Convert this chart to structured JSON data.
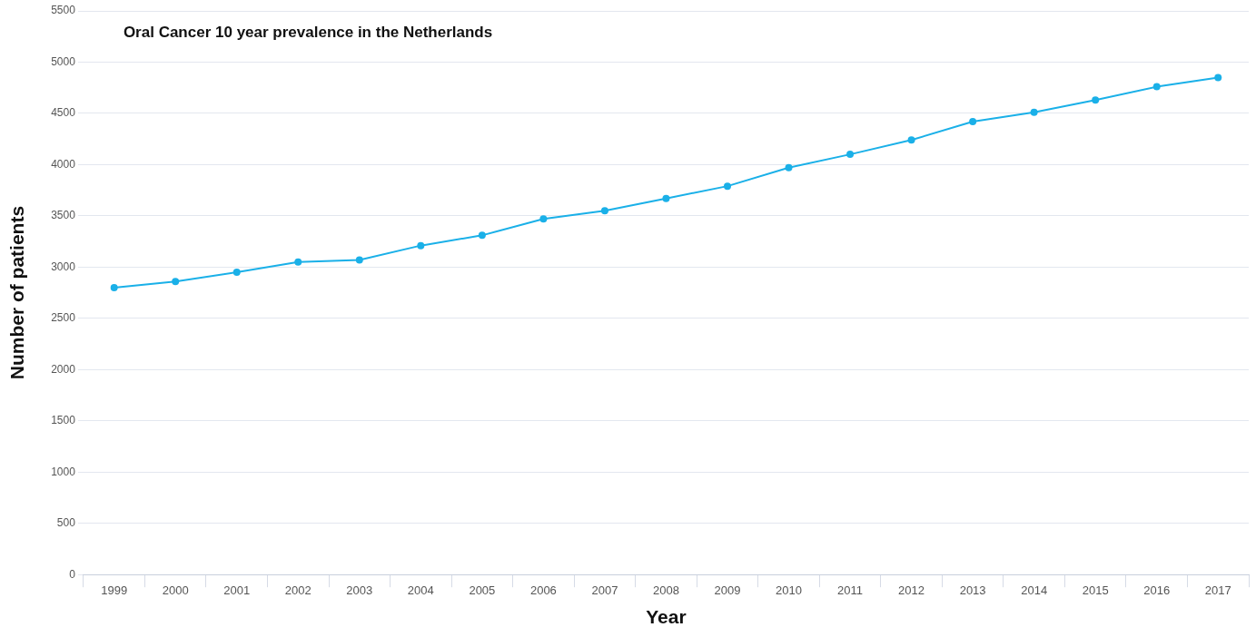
{
  "chart_data": {
    "type": "line",
    "title": "Oral Cancer 10 year prevalence in the Netherlands",
    "xlabel": "Year",
    "ylabel": "Number of patients",
    "categories": [
      "1999",
      "2000",
      "2001",
      "2002",
      "2003",
      "2004",
      "2005",
      "2006",
      "2007",
      "2008",
      "2009",
      "2010",
      "2011",
      "2012",
      "2013",
      "2014",
      "2015",
      "2016",
      "2017"
    ],
    "series": [
      {
        "color": "#1ab0e8",
        "values": [
          2800,
          2860,
          2950,
          3050,
          3070,
          3210,
          3310,
          3470,
          3550,
          3670,
          3790,
          3970,
          4100,
          4240,
          4420,
          4510,
          4630,
          4760,
          4850
        ]
      }
    ],
    "ylim": [
      0,
      5500
    ],
    "yticks": [
      0,
      500,
      1000,
      1500,
      2000,
      2500,
      3000,
      3500,
      4000,
      4500,
      5000,
      5500
    ],
    "grid": "y",
    "legend": false,
    "marker": "circle",
    "line_style": "solid"
  }
}
